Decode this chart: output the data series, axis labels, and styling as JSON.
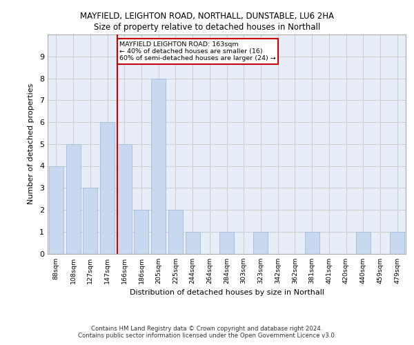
{
  "title": "MAYFIELD, LEIGHTON ROAD, NORTHALL, DUNSTABLE, LU6 2HA",
  "subtitle": "Size of property relative to detached houses in Northall",
  "xlabel": "Distribution of detached houses by size in Northall",
  "ylabel": "Number of detached properties",
  "categories": [
    "88sqm",
    "108sqm",
    "127sqm",
    "147sqm",
    "166sqm",
    "186sqm",
    "205sqm",
    "225sqm",
    "244sqm",
    "264sqm",
    "284sqm",
    "303sqm",
    "323sqm",
    "342sqm",
    "362sqm",
    "381sqm",
    "401sqm",
    "420sqm",
    "440sqm",
    "459sqm",
    "479sqm"
  ],
  "values": [
    4,
    5,
    3,
    6,
    5,
    2,
    8,
    2,
    1,
    0,
    1,
    0,
    1,
    0,
    0,
    1,
    0,
    0,
    1,
    0,
    1
  ],
  "bar_color": "#c8d8ee",
  "bar_edgecolor": "#a8c0dc",
  "vline_x_idx": 4,
  "vline_color": "#cc0000",
  "annotation_text": "MAYFIELD LEIGHTON ROAD: 163sqm\n← 40% of detached houses are smaller (16)\n60% of semi-detached houses are larger (24) →",
  "annotation_box_color": "#ffffff",
  "annotation_box_edgecolor": "#cc0000",
  "ylim": [
    0,
    10
  ],
  "yticks": [
    0,
    1,
    2,
    3,
    4,
    5,
    6,
    7,
    8,
    9,
    10
  ],
  "grid_color": "#cccccc",
  "background_color": "#e8eef8",
  "fig_background": "#ffffff",
  "footer_line1": "Contains HM Land Registry data © Crown copyright and database right 2024.",
  "footer_line2": "Contains public sector information licensed under the Open Government Licence v3.0."
}
